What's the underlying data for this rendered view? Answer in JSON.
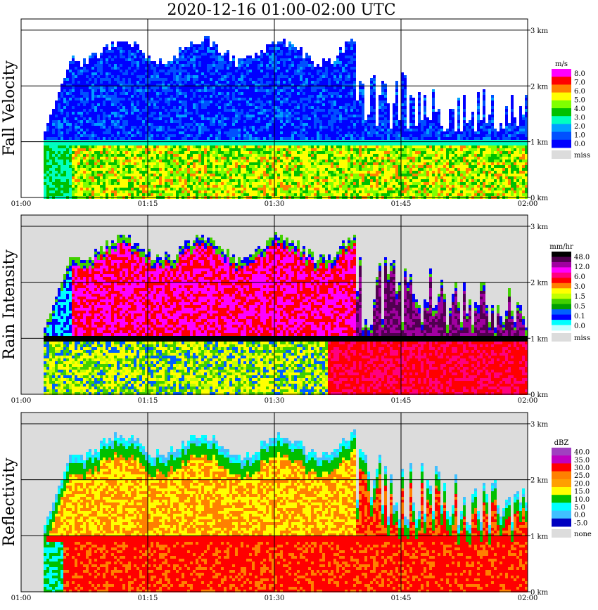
{
  "title": "2020-12-16   01:00-02:00 UTC",
  "time_ticks": [
    "01:00",
    "01:15",
    "01:30",
    "01:45",
    "02:00"
  ],
  "height_ticks": [
    "0 km",
    "1 km",
    "2 km",
    "3 km"
  ],
  "missing_color": "#dcdcdc",
  "chart_data": [
    {
      "type": "heatmap",
      "name": "Fall Velocity",
      "ylabel": "Fall Velocity",
      "x_range": [
        "01:00",
        "02:00"
      ],
      "y_range_km": [
        0,
        3.2
      ],
      "legend": {
        "unit": "m/s",
        "labels": [
          "8.0",
          "7.0",
          "6.0",
          "5.0",
          "4.0",
          "3.0",
          "2.0",
          "1.0",
          "0.0"
        ],
        "colors": [
          "#ff00ff",
          "#ff0000",
          "#ff8000",
          "#ffff00",
          "#80ff00",
          "#00c000",
          "#00ffc0",
          "#00a0ff",
          "#0050ff",
          "#0000ff"
        ],
        "missing_label": "miss"
      }
    },
    {
      "type": "heatmap",
      "name": "Rain Intensity",
      "ylabel": "Rain Intensity",
      "x_range": [
        "01:00",
        "02:00"
      ],
      "y_range_km": [
        0,
        3.2
      ],
      "legend": {
        "unit": "mm/hr",
        "labels": [
          "48.0",
          "12.0",
          "6.0",
          "3.0",
          "1.5",
          "0.5",
          "0.1",
          "0.0"
        ],
        "colors": [
          "#000000",
          "#500050",
          "#a000a0",
          "#ff00ff",
          "#ff0080",
          "#ff0000",
          "#ff8000",
          "#ffff00",
          "#c0ff00",
          "#40d000",
          "#00a000",
          "#0060ff",
          "#0000ff",
          "#00ffff",
          "#c0ffff"
        ],
        "missing_label": "miss"
      }
    },
    {
      "type": "heatmap",
      "name": "Reflectivity",
      "ylabel": "Reflectivity",
      "x_range": [
        "01:00",
        "02:00"
      ],
      "y_range_km": [
        0,
        3.2
      ],
      "legend": {
        "unit": "dBZ",
        "labels": [
          "40.0",
          "35.0",
          "30.0",
          "25.0",
          "20.0",
          "15.0",
          "10.0",
          "5.0",
          "0.0",
          "-5.0"
        ],
        "colors": [
          "#a040c0",
          "#c000c0",
          "#ff0000",
          "#ff8000",
          "#ffa000",
          "#ffff00",
          "#00c000",
          "#00ffff",
          "#40c0ff",
          "#0000c0"
        ],
        "missing_label": "none"
      }
    }
  ]
}
